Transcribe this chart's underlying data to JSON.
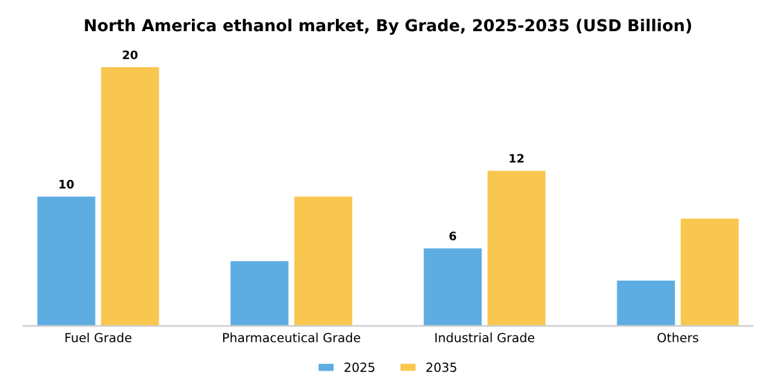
{
  "chart_data": {
    "type": "bar",
    "title": "North America ethanol market, By Grade, 2025-2035 (USD Billion)",
    "categories": [
      "Fuel Grade",
      "Pharmaceutical Grade",
      "Industrial Grade",
      "Others"
    ],
    "series": [
      {
        "name": "2025",
        "color": "#5dade2",
        "values": [
          10,
          5,
          6,
          3.5
        ],
        "value_labels": [
          "10",
          null,
          "6",
          null
        ]
      },
      {
        "name": "2035",
        "color": "#f9c74f",
        "values": [
          20,
          10,
          12,
          8.3
        ],
        "value_labels": [
          "20",
          null,
          "12",
          null
        ]
      }
    ],
    "legend": "bottom",
    "grid": false
  }
}
